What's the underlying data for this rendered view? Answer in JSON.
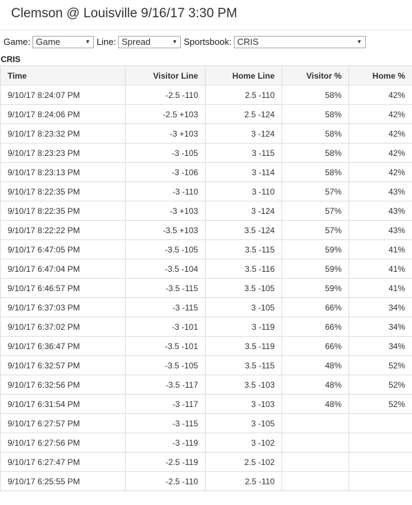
{
  "page": {
    "title": "Clemson @ Louisville 9/16/17 3:30 PM"
  },
  "filters": {
    "game_label": "Game:",
    "game_value": "Game",
    "line_label": "Line:",
    "line_value": "Spread",
    "sportsbook_label": "Sportsbook:",
    "sportsbook_value": "CRIS"
  },
  "section": {
    "name": "CRIS"
  },
  "table": {
    "headers": [
      "Time",
      "Visitor Line",
      "Home Line",
      "Visitor %",
      "Home %"
    ],
    "rows": [
      [
        "9/10/17 8:24:07 PM",
        "-2.5 -110",
        "2.5 -110",
        "58%",
        "42%"
      ],
      [
        "9/10/17 8:24:06 PM",
        "-2.5 +103",
        "2.5 -124",
        "58%",
        "42%"
      ],
      [
        "9/10/17 8:23:32 PM",
        "-3 +103",
        "3 -124",
        "58%",
        "42%"
      ],
      [
        "9/10/17 8:23:23 PM",
        "-3 -105",
        "3 -115",
        "58%",
        "42%"
      ],
      [
        "9/10/17 8:23:13 PM",
        "-3 -106",
        "3 -114",
        "58%",
        "42%"
      ],
      [
        "9/10/17 8:22:35 PM",
        "-3 -110",
        "3 -110",
        "57%",
        "43%"
      ],
      [
        "9/10/17 8:22:35 PM",
        "-3 +103",
        "3 -124",
        "57%",
        "43%"
      ],
      [
        "9/10/17 8:22:22 PM",
        "-3.5 +103",
        "3.5 -124",
        "57%",
        "43%"
      ],
      [
        "9/10/17 6:47:05 PM",
        "-3.5 -105",
        "3.5 -115",
        "59%",
        "41%"
      ],
      [
        "9/10/17 6:47:04 PM",
        "-3.5 -104",
        "3.5 -116",
        "59%",
        "41%"
      ],
      [
        "9/10/17 6:46:57 PM",
        "-3.5 -115",
        "3.5 -105",
        "59%",
        "41%"
      ],
      [
        "9/10/17 6:37:03 PM",
        "-3 -115",
        "3 -105",
        "66%",
        "34%"
      ],
      [
        "9/10/17 6:37:02 PM",
        "-3 -101",
        "3 -119",
        "66%",
        "34%"
      ],
      [
        "9/10/17 6:36:47 PM",
        "-3.5 -101",
        "3.5 -119",
        "66%",
        "34%"
      ],
      [
        "9/10/17 6:32:57 PM",
        "-3.5 -105",
        "3.5 -115",
        "48%",
        "52%"
      ],
      [
        "9/10/17 6:32:56 PM",
        "-3.5 -117",
        "3.5 -103",
        "48%",
        "52%"
      ],
      [
        "9/10/17 6:31:54 PM",
        "-3 -117",
        "3 -103",
        "48%",
        "52%"
      ],
      [
        "9/10/17 6:27:57 PM",
        "-3 -115",
        "3 -105",
        "",
        ""
      ],
      [
        "9/10/17 6:27:56 PM",
        "-3 -119",
        "3 -102",
        "",
        ""
      ],
      [
        "9/10/17 6:27:47 PM",
        "-2.5 -119",
        "2.5 -102",
        "",
        ""
      ],
      [
        "9/10/17 6:25:55 PM",
        "-2.5 -110",
        "2.5 -110",
        "",
        ""
      ]
    ]
  }
}
